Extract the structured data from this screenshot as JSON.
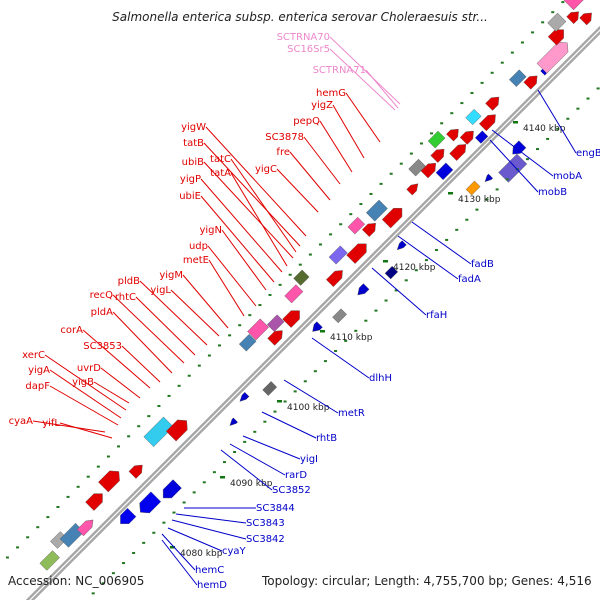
{
  "header": {
    "title": "Salmonella enterica subsp. enterica serovar Choleraesuis str..."
  },
  "footer": {
    "accession": "Accession: NC_006905",
    "stats": "Topology: circular; Length: 4,755,700 bp; Genes: 4,516"
  },
  "colors": {
    "backbone": "#a6a6a6",
    "forward_label": "#e00000",
    "reverse_label": "#0000c8",
    "rna_label": "#ee88cc",
    "tick": "#117711"
  },
  "ticks": [
    {
      "label": "4080 kbp"
    },
    {
      "label": "4090 kbp"
    },
    {
      "label": "4100 kbp"
    },
    {
      "label": "4110 kbp"
    },
    {
      "label": "4120 kbp"
    },
    {
      "label": "4130 kbp"
    },
    {
      "label": "4140 kbp"
    }
  ],
  "forward_genes": [
    {
      "name": "cyaA"
    },
    {
      "name": "yifL"
    },
    {
      "name": "dapF"
    },
    {
      "name": "yigA"
    },
    {
      "name": "xerC"
    },
    {
      "name": "yigB"
    },
    {
      "name": "uvrD"
    },
    {
      "name": "corA"
    },
    {
      "name": "SC3853"
    },
    {
      "name": "pldA"
    },
    {
      "name": "recQ"
    },
    {
      "name": "rhtC"
    },
    {
      "name": "pldB"
    },
    {
      "name": "yigL"
    },
    {
      "name": "yigM"
    },
    {
      "name": "metE"
    },
    {
      "name": "udp"
    },
    {
      "name": "yigN"
    },
    {
      "name": "ubiE"
    },
    {
      "name": "yigP"
    },
    {
      "name": "tatA"
    },
    {
      "name": "ubiB"
    },
    {
      "name": "tatC"
    },
    {
      "name": "tatB"
    },
    {
      "name": "yigW"
    },
    {
      "name": "yigC"
    },
    {
      "name": "fre"
    },
    {
      "name": "SC3878"
    },
    {
      "name": "pepQ"
    },
    {
      "name": "yigZ"
    },
    {
      "name": "hemG"
    }
  ],
  "rna_genes": [
    {
      "name": "SCTRNA71"
    },
    {
      "name": "SC16Sr5"
    },
    {
      "name": "SCTRNA70"
    }
  ],
  "reverse_genes": [
    {
      "name": "hemD"
    },
    {
      "name": "hemC"
    },
    {
      "name": "cyaY"
    },
    {
      "name": "SC3842"
    },
    {
      "name": "SC3843"
    },
    {
      "name": "SC3844"
    },
    {
      "name": "SC3852"
    },
    {
      "name": "rarD"
    },
    {
      "name": "yigI"
    },
    {
      "name": "rhtB"
    },
    {
      "name": "metR"
    },
    {
      "name": "dlhH"
    },
    {
      "name": "rfaH"
    },
    {
      "name": "fadA"
    },
    {
      "name": "fadB"
    },
    {
      "name": "mobB"
    },
    {
      "name": "mobA"
    },
    {
      "name": "engB"
    }
  ]
}
